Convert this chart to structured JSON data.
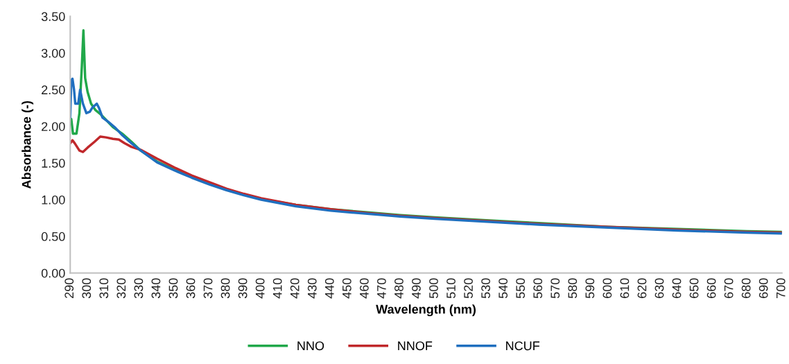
{
  "chart_data": {
    "type": "line",
    "xlabel": "Wavelength (nm)",
    "ylabel": "Absorbance (-)",
    "xlim": [
      290,
      700
    ],
    "ylim": [
      0,
      3.5
    ],
    "xticks": [
      290,
      300,
      310,
      320,
      330,
      340,
      350,
      360,
      370,
      380,
      390,
      400,
      410,
      420,
      430,
      440,
      450,
      460,
      470,
      480,
      490,
      500,
      510,
      520,
      530,
      540,
      550,
      560,
      570,
      580,
      590,
      600,
      610,
      620,
      630,
      640,
      650,
      660,
      670,
      680,
      690,
      700
    ],
    "yticks": [
      {
        "value": 0,
        "label": "0.00"
      },
      {
        "value": 0.5,
        "label": "0.50"
      },
      {
        "value": 1,
        "label": "1.00"
      },
      {
        "value": 1.5,
        "label": "1.50"
      },
      {
        "value": 2,
        "label": "2.00"
      },
      {
        "value": 2.5,
        "label": "2.50"
      },
      {
        "value": 3,
        "label": "3.00"
      },
      {
        "value": 3.5,
        "label": "3.50"
      }
    ],
    "grid": false,
    "legend": "bottom",
    "marker": "none",
    "line_style": "solid",
    "series": [
      {
        "name": "NNO",
        "color": "#21a84a",
        "x": [
          290,
          290.6,
          291.6,
          293.6,
          295.3,
          296.7,
          297.6,
          298.6,
          300,
          302,
          304.6,
          307.3,
          310.6,
          314.6,
          320,
          325.3,
          330.6,
          340,
          350,
          360,
          370,
          380,
          390,
          400,
          420,
          440,
          460,
          480,
          500,
          530,
          560,
          600,
          640,
          680,
          700
        ],
        "values": [
          2.09,
          2.1,
          1.9,
          1.9,
          2.18,
          2.82,
          3.31,
          2.66,
          2.47,
          2.31,
          2.22,
          2.17,
          2.09,
          1.99,
          1.9,
          1.79,
          1.67,
          1.52,
          1.41,
          1.31,
          1.22,
          1.14,
          1.07,
          1.01,
          0.93,
          0.87,
          0.83,
          0.79,
          0.76,
          0.72,
          0.68,
          0.63,
          0.6,
          0.57,
          0.56
        ]
      },
      {
        "name": "NNOF",
        "color": "#c0282b",
        "x": [
          290,
          291.3,
          292.6,
          295.3,
          297.3,
          300,
          304,
          307.3,
          310.6,
          314.6,
          318,
          321.3,
          325.3,
          329.3,
          330.6,
          340,
          350,
          360,
          370,
          380,
          390,
          400,
          420,
          440,
          460,
          480,
          500,
          530,
          560,
          600,
          640,
          680,
          700
        ],
        "values": [
          1.77,
          1.81,
          1.77,
          1.67,
          1.65,
          1.71,
          1.79,
          1.86,
          1.85,
          1.83,
          1.82,
          1.77,
          1.72,
          1.69,
          1.68,
          1.56,
          1.44,
          1.33,
          1.24,
          1.15,
          1.08,
          1.02,
          0.93,
          0.87,
          0.82,
          0.78,
          0.75,
          0.71,
          0.67,
          0.63,
          0.59,
          0.56,
          0.55
        ]
      },
      {
        "name": "NCUF",
        "color": "#1f6fbf",
        "x": [
          290,
          290.6,
          291.3,
          292.2,
          292.9,
          294.6,
          295.7,
          297.3,
          299.3,
          301.3,
          302.6,
          305.3,
          306.6,
          308.6,
          312,
          316,
          320,
          325.3,
          330.6,
          340,
          350,
          360,
          370,
          380,
          390,
          400,
          420,
          440,
          460,
          480,
          500,
          530,
          560,
          600,
          640,
          680,
          700
        ],
        "values": [
          2.12,
          2.63,
          2.65,
          2.5,
          2.31,
          2.31,
          2.5,
          2.31,
          2.18,
          2.2,
          2.25,
          2.31,
          2.25,
          2.12,
          2.06,
          1.98,
          1.88,
          1.77,
          1.67,
          1.51,
          1.4,
          1.3,
          1.21,
          1.13,
          1.06,
          1.0,
          0.91,
          0.85,
          0.81,
          0.77,
          0.74,
          0.7,
          0.66,
          0.62,
          0.58,
          0.55,
          0.54
        ]
      }
    ]
  }
}
